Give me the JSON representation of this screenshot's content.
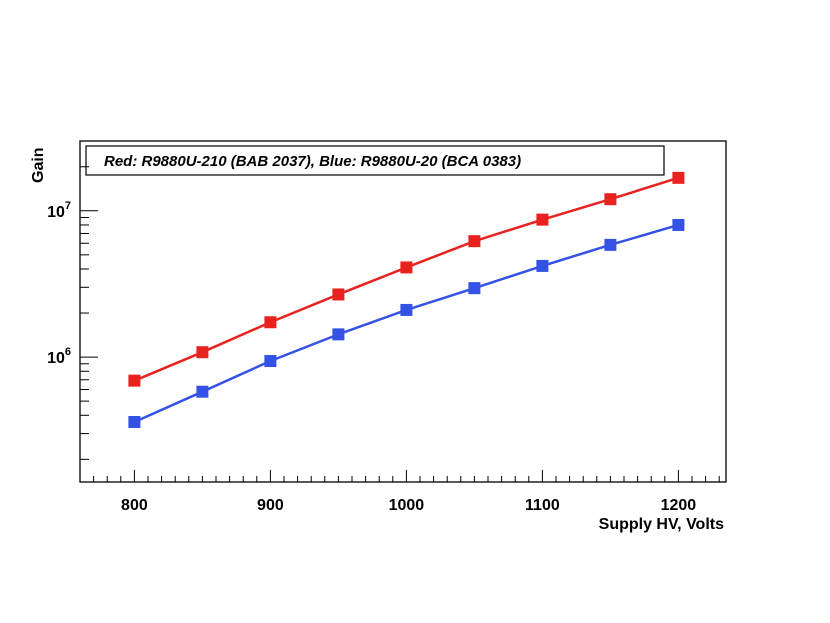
{
  "chart_data": {
    "type": "line",
    "title": "",
    "xlabel": "Supply HV, Volts",
    "ylabel": "Gain",
    "xlim": [
      760,
      1235
    ],
    "ylim": [
      140000.0,
      30000000.0
    ],
    "y_scale": "log",
    "x_ticks": [
      800,
      900,
      1000,
      1100,
      1200
    ],
    "y_tick_labels": [
      {
        "value": 1000000,
        "base": "10",
        "exp": "6"
      },
      {
        "value": 10000000,
        "base": "10",
        "exp": "7"
      }
    ],
    "grid": false,
    "legend": {
      "text": "Red: R9880U-210 (BAB 2037), Blue: R9880U-20 (BCA 0383)",
      "placement": "top-left"
    },
    "series": [
      {
        "color": "#e8231f",
        "marker": "square",
        "x": [
          800,
          850,
          900,
          950,
          1000,
          1050,
          1100,
          1150,
          1200
        ],
        "y": [
          690000,
          1080000,
          1730000,
          2680000,
          4100000,
          6200000,
          8700000,
          12000000,
          16800000
        ]
      },
      {
        "color": "#3552e6",
        "marker": "square",
        "x": [
          800,
          850,
          900,
          950,
          1000,
          1050,
          1100,
          1150,
          1200
        ],
        "y": [
          360000,
          580000,
          940000,
          1430000,
          2100000,
          2960000,
          4200000,
          5850000,
          8000000
        ]
      }
    ]
  }
}
